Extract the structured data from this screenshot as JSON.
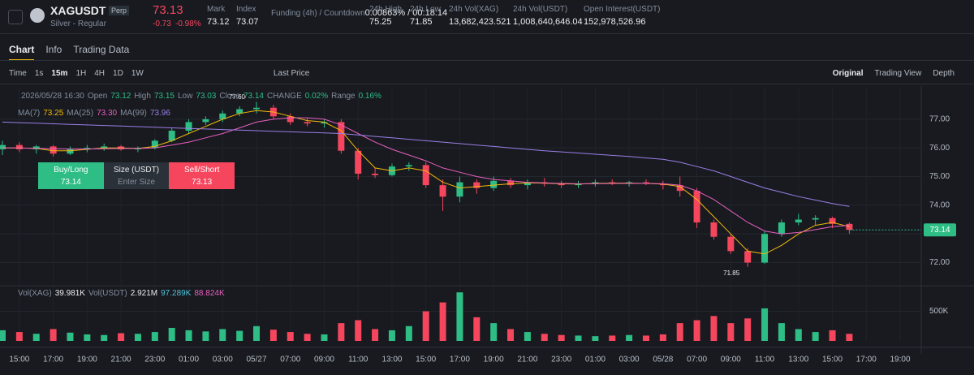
{
  "header": {
    "symbol": "XAGUSDT",
    "contract": "Perp",
    "subtitle": "Silver - Regular",
    "price": "73.13",
    "change": "-0.73",
    "change_pct": "-0.98%",
    "stats": [
      {
        "label": "Mark",
        "value": "73.12"
      },
      {
        "label": "Index",
        "value": "73.07"
      },
      {
        "label": "Funding (4h) / Countdown",
        "value": "0.00863%",
        "countdown": "/ 00:18:14"
      },
      {
        "label": "24h High",
        "value": "75.25"
      },
      {
        "label": "24h Low",
        "value": "71.85"
      },
      {
        "label": "24h Vol(XAG)",
        "value": "13,682,423.521"
      },
      {
        "label": "24h Vol(USDT)",
        "value": "1,008,640,646.04"
      },
      {
        "label": "Open Interest(USDT)",
        "value": "152,978,526.96"
      }
    ]
  },
  "tabs": [
    "Chart",
    "Info",
    "Trading Data"
  ],
  "toolbar": {
    "intervals": [
      "Time",
      "1s",
      "15m",
      "1H",
      "4H",
      "1D",
      "1W"
    ],
    "price_type": "Last Price",
    "views": [
      "Original",
      "Trading View",
      "Depth"
    ]
  },
  "info_bar": {
    "datetime": "2026/05/28 16:30",
    "items": [
      {
        "label": "Open",
        "value": "73.12"
      },
      {
        "label": "High",
        "value": "73.15"
      },
      {
        "label": "Low",
        "value": "73.03"
      },
      {
        "label": "Close",
        "value": "73.14"
      },
      {
        "label": "CHANGE",
        "value": "0.02%"
      },
      {
        "label": "Range",
        "value": "0.16%"
      }
    ]
  },
  "trade_panel": {
    "buy": "Buy/Long",
    "buy_price": "73.14",
    "size": "Size (USDT)",
    "size_placeholder": "Enter Size",
    "sell": "Sell/Short",
    "sell_price": "73.13"
  },
  "chart_data": {
    "type": "candlestick",
    "up_color": "#2ebd85",
    "down_color": "#f6465d",
    "grid": true,
    "categories": [
      null,
      "15:00",
      null,
      "17:00",
      null,
      "19:00",
      null,
      "21:00",
      null,
      "23:00",
      null,
      "01:00",
      null,
      "03:00",
      null,
      "05/27",
      null,
      "07:00",
      null,
      "09:00",
      null,
      "11:00",
      null,
      "13:00",
      null,
      "15:00",
      null,
      "17:00",
      null,
      "19:00",
      null,
      "21:00",
      null,
      "23:00",
      null,
      "01:00",
      null,
      "03:00",
      null,
      "05/28",
      null,
      "07:00",
      null,
      "09:00",
      null,
      "11:00",
      null,
      "13:00",
      null,
      "15:00",
      null,
      "17:00",
      null,
      "19:00"
    ],
    "open": [
      75.95,
      76.1,
      75.95,
      76.05,
      75.8,
      75.95,
      76.0,
      76.05,
      75.95,
      76.0,
      76.25,
      76.6,
      76.9,
      77.0,
      77.2,
      77.35,
      77.4,
      77.1,
      76.9,
      76.85,
      76.9,
      75.9,
      75.1,
      75.05,
      75.35,
      75.4,
      74.7,
      74.3,
      74.8,
      74.6,
      74.85,
      74.7,
      74.8,
      74.75,
      74.7,
      74.75,
      74.8,
      74.75,
      74.8,
      74.75,
      74.7,
      74.5,
      73.4,
      72.9,
      72.4,
      72.0,
      73.0,
      73.4,
      73.5,
      73.55,
      73.35,
      null,
      null,
      null
    ],
    "high": [
      76.25,
      76.2,
      76.1,
      76.1,
      76.05,
      76.1,
      76.15,
      76.1,
      76.05,
      76.3,
      76.7,
      77.0,
      77.1,
      77.3,
      77.45,
      77.6,
      77.5,
      77.2,
      77.05,
      77.0,
      77.0,
      76.0,
      75.3,
      75.45,
      75.5,
      75.5,
      74.9,
      75.0,
      74.9,
      75.0,
      74.95,
      74.9,
      74.95,
      74.85,
      74.85,
      74.9,
      74.9,
      74.85,
      74.9,
      74.85,
      75.0,
      74.6,
      73.5,
      73.0,
      72.5,
      73.1,
      73.5,
      73.7,
      73.65,
      73.6,
      73.4,
      null,
      null,
      null
    ],
    "low": [
      75.75,
      75.85,
      75.8,
      75.7,
      75.75,
      75.85,
      75.9,
      75.9,
      75.85,
      75.95,
      76.2,
      76.5,
      76.8,
      76.9,
      77.1,
      77.2,
      77.0,
      76.8,
      76.75,
      76.7,
      75.8,
      74.9,
      74.95,
      75.0,
      75.2,
      74.6,
      73.8,
      74.1,
      74.4,
      74.5,
      74.6,
      74.55,
      74.65,
      74.6,
      74.6,
      74.65,
      74.7,
      74.65,
      74.7,
      74.55,
      74.3,
      73.2,
      72.8,
      72.3,
      71.85,
      71.95,
      72.9,
      73.3,
      73.3,
      73.2,
      73.0,
      null,
      null,
      null
    ],
    "close": [
      76.1,
      75.95,
      76.05,
      75.8,
      75.95,
      76.0,
      76.05,
      75.95,
      76.0,
      76.25,
      76.6,
      76.9,
      77.0,
      77.2,
      77.35,
      77.4,
      77.1,
      76.9,
      76.85,
      76.9,
      75.9,
      75.1,
      75.05,
      75.35,
      75.4,
      74.7,
      74.3,
      74.8,
      74.6,
      74.85,
      74.7,
      74.8,
      74.75,
      74.7,
      74.75,
      74.8,
      74.75,
      74.8,
      74.75,
      74.7,
      74.5,
      73.4,
      72.9,
      72.4,
      72.0,
      73.0,
      73.4,
      73.5,
      73.55,
      73.35,
      73.14,
      null,
      null,
      null
    ],
    "series": [
      {
        "name": "MA(7)",
        "color": "#f0b90b",
        "last_label": "73.25",
        "values": [
          76.0,
          76.0,
          75.98,
          75.9,
          75.9,
          75.95,
          76.0,
          76.0,
          75.98,
          76.05,
          76.25,
          76.5,
          76.75,
          77.0,
          77.2,
          77.3,
          77.25,
          77.1,
          76.95,
          76.9,
          76.6,
          75.9,
          75.3,
          75.2,
          75.3,
          75.2,
          74.8,
          74.6,
          74.65,
          74.7,
          74.75,
          74.78,
          74.77,
          74.75,
          74.74,
          74.76,
          74.77,
          74.77,
          74.76,
          74.74,
          74.65,
          74.2,
          73.6,
          73.0,
          72.4,
          72.3,
          72.6,
          73.0,
          73.3,
          73.4,
          73.25,
          null,
          null,
          null
        ]
      },
      {
        "name": "MA(25)",
        "color": "#e85fbf",
        "last_label": "73.30",
        "values": [
          76.0,
          76.0,
          75.98,
          75.97,
          75.96,
          75.96,
          75.97,
          75.98,
          75.98,
          76.0,
          76.1,
          76.2,
          76.35,
          76.5,
          76.7,
          76.9,
          77.0,
          77.05,
          77.05,
          77.0,
          76.8,
          76.5,
          76.2,
          75.95,
          75.75,
          75.55,
          75.3,
          75.15,
          75.0,
          74.9,
          74.85,
          74.8,
          74.78,
          74.76,
          74.75,
          74.75,
          74.76,
          74.76,
          74.76,
          74.75,
          74.7,
          74.5,
          74.2,
          73.8,
          73.4,
          73.1,
          73.0,
          73.05,
          73.15,
          73.25,
          73.3,
          null,
          null,
          null
        ]
      },
      {
        "name": "MA(99)",
        "color": "#9b7fe6",
        "last_label": "73.96",
        "values": [
          76.9,
          76.88,
          76.86,
          76.84,
          76.82,
          76.8,
          76.78,
          76.76,
          76.74,
          76.72,
          76.7,
          76.68,
          76.66,
          76.64,
          76.62,
          76.6,
          76.58,
          76.56,
          76.54,
          76.52,
          76.5,
          76.45,
          76.4,
          76.35,
          76.3,
          76.25,
          76.2,
          76.15,
          76.1,
          76.05,
          76.0,
          75.95,
          75.9,
          75.86,
          75.82,
          75.78,
          75.74,
          75.7,
          75.65,
          75.6,
          75.5,
          75.35,
          75.2,
          75.0,
          74.8,
          74.6,
          74.45,
          74.3,
          74.18,
          74.06,
          73.96,
          null,
          null,
          null
        ]
      }
    ],
    "ylim": [
      71.25,
      78.1
    ],
    "yticks": [
      {
        "value": 72,
        "label": "72.00"
      },
      {
        "value": 73,
        "label": "73.00"
      },
      {
        "value": 74,
        "label": "74.00"
      },
      {
        "value": 75,
        "label": "75.00"
      },
      {
        "value": 76,
        "label": "76.00"
      },
      {
        "value": 77,
        "label": "77.00"
      }
    ],
    "last_price": 73.14,
    "high_mark": {
      "value": 77.6,
      "label": "77.60"
    },
    "low_mark": 71.85,
    "volume": {
      "values": [
        180000,
        150000,
        120000,
        200000,
        140000,
        110000,
        100000,
        130000,
        120000,
        150000,
        220000,
        180000,
        160000,
        200000,
        170000,
        250000,
        190000,
        150000,
        120000,
        110000,
        300000,
        350000,
        200000,
        180000,
        250000,
        500000,
        650000,
        820000,
        400000,
        300000,
        200000,
        150000,
        120000,
        100000,
        90000,
        80000,
        90000,
        100000,
        90000,
        110000,
        300000,
        350000,
        420000,
        300000,
        380000,
        550000,
        300000,
        200000,
        150000,
        180000,
        120000,
        null,
        null,
        null
      ],
      "ylim": [
        0,
        850000
      ],
      "yticks": [
        {
          "value": 500000,
          "label": "500K"
        }
      ],
      "legend": [
        {
          "label": "Vol(XAG)",
          "value": "39.981K",
          "color": "#eaecef"
        },
        {
          "label": "Vol(USDT)",
          "value": "2.921M",
          "color": "#eaecef"
        },
        {
          "label": null,
          "value": "97.289K",
          "color": "#4cc3d9"
        },
        {
          "label": null,
          "value": "88.824K",
          "color": "#e85fbf"
        }
      ]
    }
  }
}
